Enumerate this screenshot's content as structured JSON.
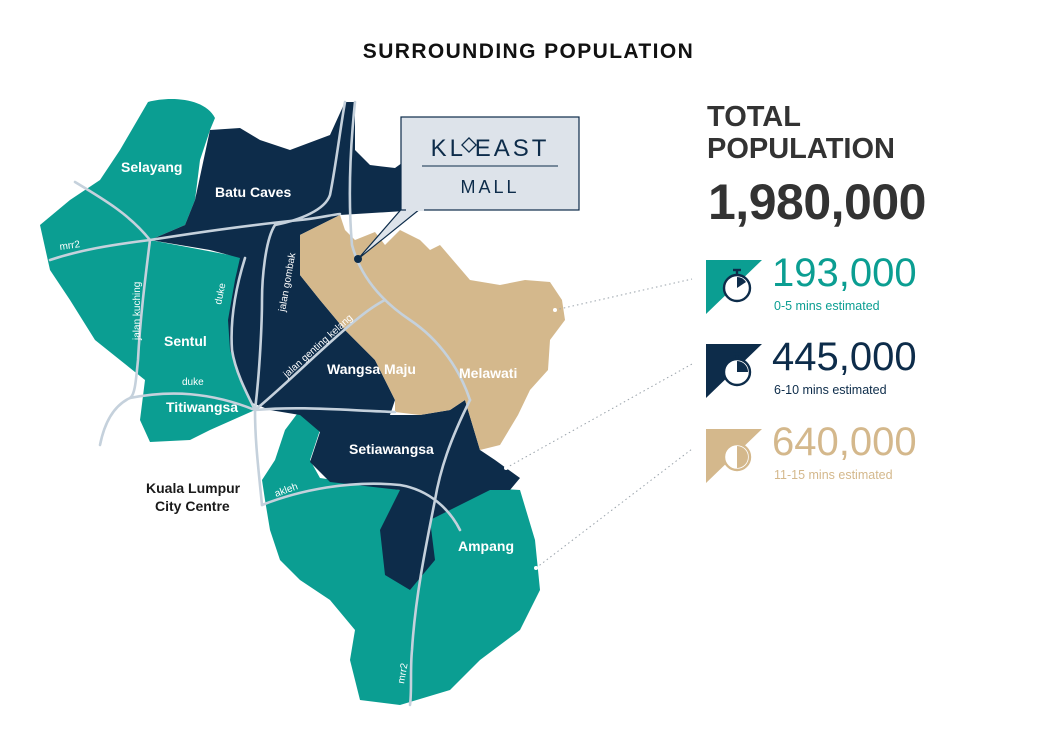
{
  "title": "SURROUNDING POPULATION",
  "mall_logo": {
    "line1": "KL EAST",
    "line2": "MALL",
    "emblem": "kl-east-emblem"
  },
  "total": {
    "label_line1": "TOTAL",
    "label_line2": "POPULATION",
    "value": "1,980,000"
  },
  "stats": [
    {
      "value": "193,000",
      "caption": "0-5 mins estimated",
      "color": "#0b9e92",
      "icon": "stopwatch-icon"
    },
    {
      "value": "445,000",
      "caption": "6-10 mins estimated",
      "color": "#0d2c4a",
      "icon": "stopwatch-icon"
    },
    {
      "value": "640,000",
      "caption": "11-15 mins estimated",
      "color": "#d4b88c",
      "icon": "stopwatch-icon"
    }
  ],
  "zones": {
    "teal": "#0b9e92",
    "navy": "#0d2c4a",
    "tan": "#d4b88c"
  },
  "areas": {
    "selayang": "Selayang",
    "batu_caves": "Batu Caves",
    "sentul": "Sentul",
    "titiwangsa": "Titiwangsa",
    "wangsa_maju": "Wangsa Maju",
    "melawati": "Melawati",
    "setiawangsa": "Setiawangsa",
    "ampang": "Ampang",
    "klcc_line1": "Kuala Lumpur",
    "klcc_line2": "City Centre"
  },
  "roads": {
    "mrr2_north": "mrr2",
    "jalan_kuching": "jalan kuching",
    "duke_vertical": "duke",
    "duke_horizontal": "duke",
    "jalan_gombak": "jalan gombak",
    "jalan_genting_kelang": "jalan genting kelang",
    "akleh": "akleh",
    "mrr2_south": "mrr2"
  }
}
